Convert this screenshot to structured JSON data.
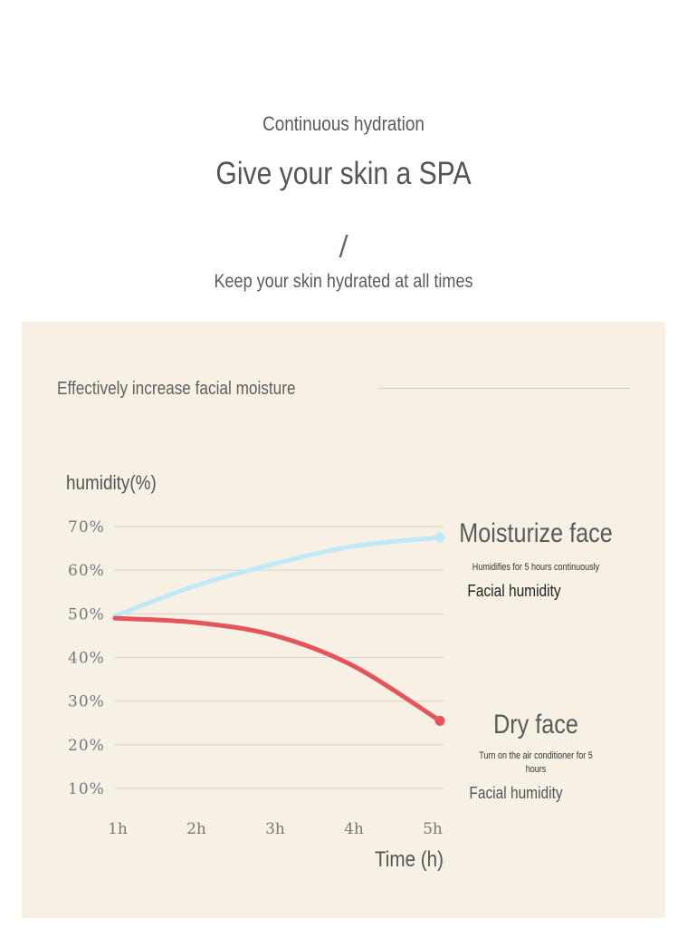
{
  "header": {
    "eyebrow": "Continuous hydration",
    "headline": "Give your skin a SPA",
    "divider": "/",
    "subline": "Keep your skin hydrated at all times"
  },
  "panel": {
    "title": "Effectively increase facial moisture"
  },
  "legend": [
    {
      "title": "Moisturize face",
      "description": "Humidifies for 5 hours continuously",
      "metric": "Facial humidity"
    },
    {
      "title": "Dry face",
      "description": "Turn on the air conditioner for 5 hours",
      "metric": "Facial humidity"
    }
  ],
  "chart_data": {
    "type": "line",
    "title": "",
    "ylabel": "humidity(%)",
    "xlabel": "Time (h)",
    "categories": [
      "1h",
      "2h",
      "3h",
      "4h",
      "5h"
    ],
    "y_ticks": [
      "10%",
      "20%",
      "30%",
      "40%",
      "50%",
      "60%",
      "70%"
    ],
    "ylim": [
      10,
      70
    ],
    "grid": true,
    "series": [
      {
        "name": "Moisturize face",
        "color": "#bfe9f6",
        "values": [
          49.5,
          56.5,
          61.5,
          65.5,
          67.5
        ]
      },
      {
        "name": "Dry face",
        "color": "#e5545a",
        "values": [
          49,
          48,
          45,
          38,
          25.5
        ]
      }
    ]
  }
}
